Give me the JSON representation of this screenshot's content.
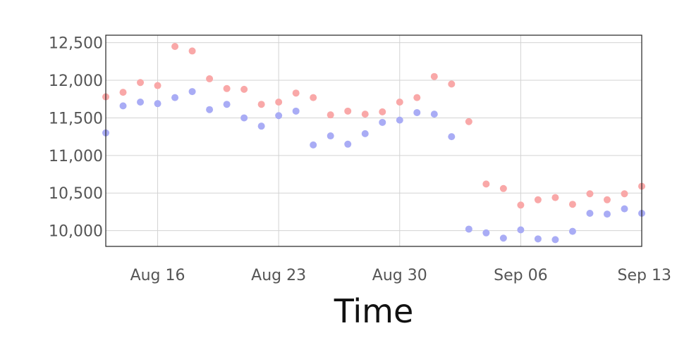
{
  "chart_data": {
    "type": "scatter",
    "title": "",
    "xlabel": "Time",
    "ylabel": "",
    "x_axis_type": "date",
    "xlim": [
      "2016-08-13",
      "2016-09-13"
    ],
    "ylim": [
      9790,
      12600
    ],
    "grid": true,
    "legend": "none",
    "x_ticks": [
      {
        "date": "2016-08-16",
        "label": "Aug 16"
      },
      {
        "date": "2016-08-23",
        "label": "Aug 23"
      },
      {
        "date": "2016-08-30",
        "label": "Aug 30"
      },
      {
        "date": "2016-09-06",
        "label": "Sep 06"
      },
      {
        "date": "2016-09-13",
        "label": "Sep 13"
      }
    ],
    "y_ticks": [
      {
        "value": 10000,
        "label": "10,000"
      },
      {
        "value": 10500,
        "label": "10,500"
      },
      {
        "value": 11000,
        "label": "11,000"
      },
      {
        "value": 11500,
        "label": "11,500"
      },
      {
        "value": 12000,
        "label": "12,000"
      },
      {
        "value": 12500,
        "label": "12,500"
      }
    ],
    "x": [
      "2016-08-13",
      "2016-08-14",
      "2016-08-15",
      "2016-08-16",
      "2016-08-17",
      "2016-08-18",
      "2016-08-19",
      "2016-08-20",
      "2016-08-21",
      "2016-08-22",
      "2016-08-23",
      "2016-08-24",
      "2016-08-25",
      "2016-08-26",
      "2016-08-27",
      "2016-08-28",
      "2016-08-29",
      "2016-08-30",
      "2016-08-31",
      "2016-09-01",
      "2016-09-02",
      "2016-09-03",
      "2016-09-04",
      "2016-09-05",
      "2016-09-06",
      "2016-09-07",
      "2016-09-08",
      "2016-09-09",
      "2016-09-10",
      "2016-09-11",
      "2016-09-12",
      "2016-09-13"
    ],
    "series": [
      {
        "color": "#f9a8a8",
        "values": [
          11780,
          11840,
          11970,
          11930,
          12450,
          12390,
          12020,
          11890,
          11880,
          11680,
          11710,
          11830,
          11770,
          11540,
          11590,
          11550,
          11580,
          11710,
          11770,
          12050,
          11950,
          11450,
          10620,
          10560,
          10340,
          10410,
          10440,
          10350,
          10490,
          10410,
          10490,
          10590
        ]
      },
      {
        "color": "#a9acf5",
        "values": [
          11300,
          11660,
          11710,
          11690,
          11770,
          11850,
          11610,
          11680,
          11500,
          11390,
          11530,
          11590,
          11140,
          11260,
          11150,
          11290,
          11440,
          11470,
          11570,
          11550,
          11250,
          10020,
          9970,
          9900,
          10010,
          9890,
          9880,
          9990,
          10230,
          10220,
          10290,
          10230
        ]
      }
    ]
  }
}
